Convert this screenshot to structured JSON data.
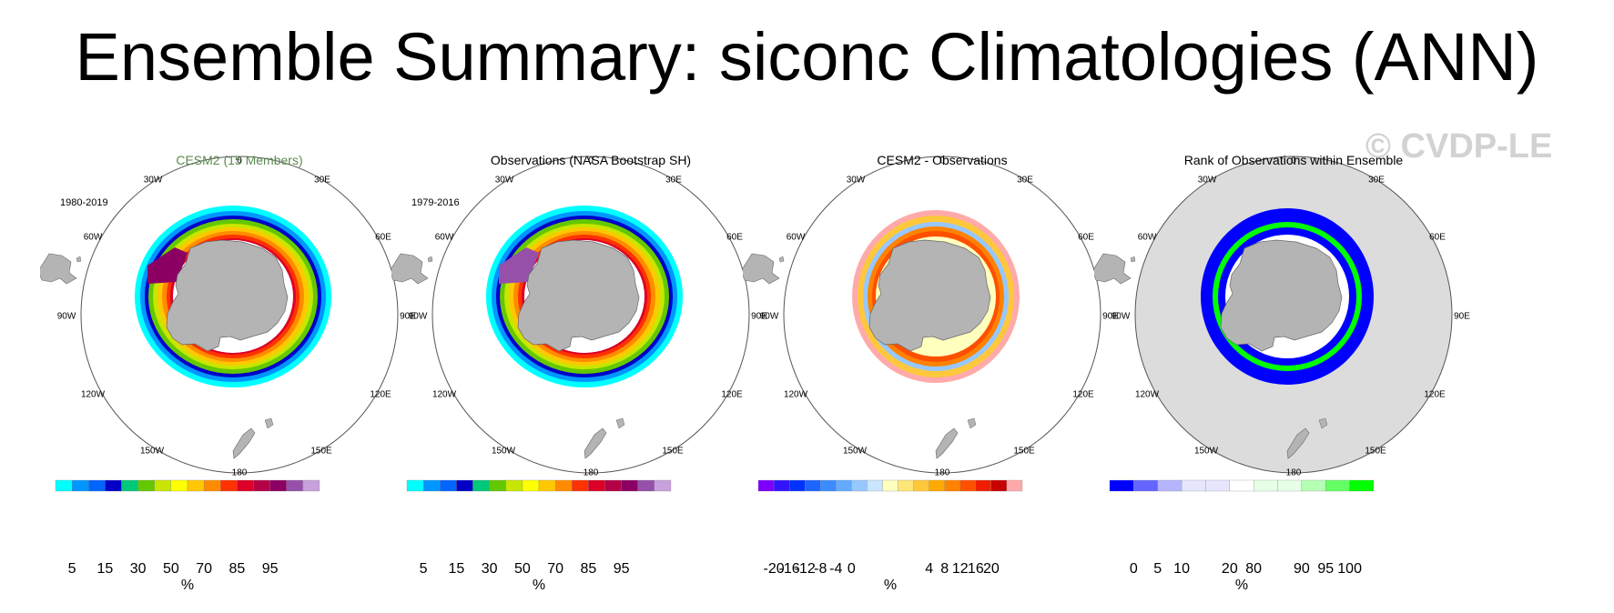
{
  "page": {
    "title": "Ensemble Summary: siconc Climatologies (ANN)",
    "watermark": "© CVDP-LE"
  },
  "lon_labels": {
    "p0": "0",
    "p30e": "30E",
    "p60e": "60E",
    "p90e": "90E",
    "p120e": "120E",
    "p150e": "150E",
    "p180": "180",
    "p150w": "150W",
    "p120w": "120W",
    "p90w": "90W",
    "p60w": "60W",
    "p30w": "30W"
  },
  "panels": [
    {
      "title": "CESM2 (15 Members)",
      "period": "1980-2019",
      "unit": "%",
      "colorbar": {
        "colors": [
          "#00ffff",
          "#0096ff",
          "#0064ff",
          "#0000c8",
          "#00c878",
          "#64c800",
          "#c8e600",
          "#ffff00",
          "#ffc800",
          "#ff8c00",
          "#ff3200",
          "#dc0028",
          "#b40046",
          "#8c0064",
          "#9650aa",
          "#c8a0dc"
        ],
        "tick_labels": [
          "5",
          "15",
          "30",
          "50",
          "70",
          "85",
          "95"
        ]
      }
    },
    {
      "title": "Observations (NASA Bootstrap SH)",
      "period": "1979-2016",
      "unit": "%",
      "colorbar": {
        "colors": [
          "#00ffff",
          "#0096ff",
          "#0064ff",
          "#0000c8",
          "#00c878",
          "#64c800",
          "#c8e600",
          "#ffff00",
          "#ffc800",
          "#ff8c00",
          "#ff3200",
          "#dc0028",
          "#b40046",
          "#8c0064",
          "#9650aa",
          "#c8a0dc"
        ],
        "tick_labels": [
          "5",
          "15",
          "30",
          "50",
          "70",
          "85",
          "95"
        ]
      }
    },
    {
      "title": "CESM2 - Observations",
      "period": "",
      "unit": "%",
      "colorbar": {
        "colors": [
          "#7d00ff",
          "#3214ff",
          "#0032ff",
          "#1e64ff",
          "#3c8cff",
          "#64aaff",
          "#96c8ff",
          "#c8e6ff",
          "#ffffbe",
          "#ffe678",
          "#ffc83c",
          "#ffaa00",
          "#ff8200",
          "#ff5000",
          "#f01e00",
          "#c80000",
          "#ffaaaa"
        ],
        "tick_labels": [
          "-20",
          "-16",
          "-12",
          "-8",
          "-4",
          "0",
          "4",
          "8",
          "12",
          "16",
          "20"
        ]
      }
    },
    {
      "title": "Rank of Observations within Ensemble",
      "period": "",
      "unit": "%",
      "colorbar": {
        "colors": [
          "#0000ff",
          "#6464ff",
          "#b4b4ff",
          "#e6e6ff",
          "#e6e6ff",
          "#ffffff",
          "#e6ffe6",
          "#e6ffe6",
          "#b4ffb4",
          "#64ff64",
          "#00ff00"
        ],
        "tick_labels": [
          "0",
          "5",
          "10",
          "20",
          "80",
          "90",
          "95",
          "100"
        ]
      }
    }
  ]
}
